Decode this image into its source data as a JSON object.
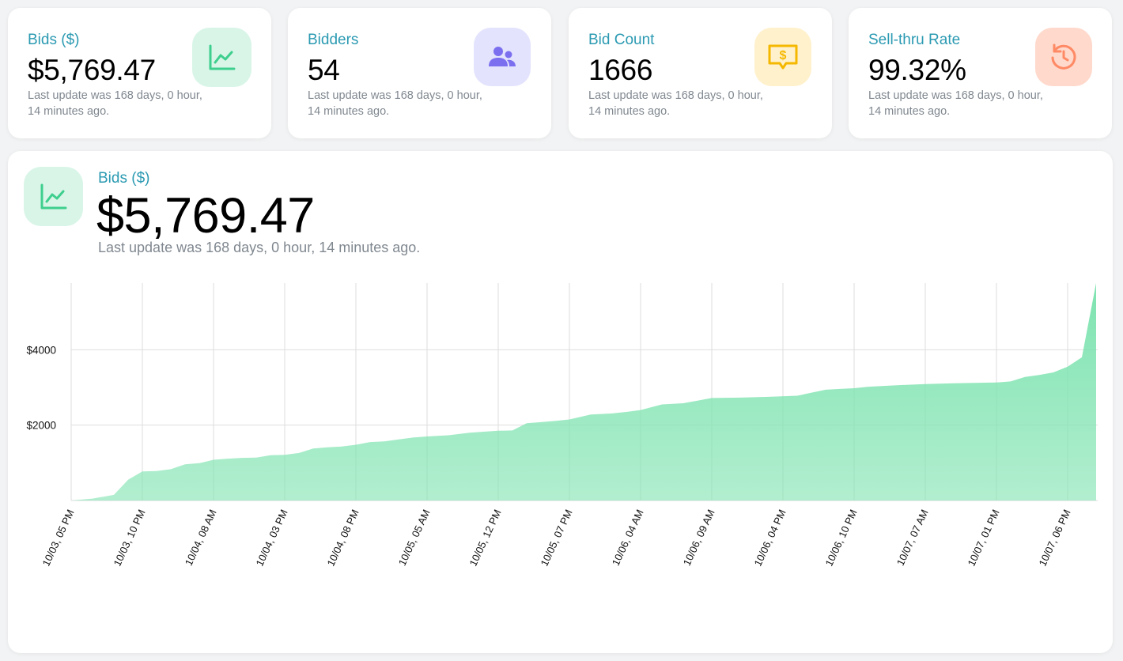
{
  "colors": {
    "accent_title": "#2b9ab2",
    "area_fill": "#7ee3b0",
    "bids_icon_bg": "#d9f5e8",
    "bids_icon": "#3ecf8e",
    "bidders_icon_bg": "#e3e3fd",
    "bidders_icon": "#7b6ff0",
    "bidcount_icon_bg": "#fff1cc",
    "bidcount_icon": "#f5b800",
    "sellthru_icon_bg": "#ffd9cc",
    "sellthru_icon": "#ff8a65"
  },
  "stats": [
    {
      "title": "Bids ($)",
      "value": "$5,769.47",
      "note": "Last update was 168 days, 0 hour, 14 minutes ago.",
      "icon": "chart-line-icon"
    },
    {
      "title": "Bidders",
      "value": "54",
      "note": "Last update was 168 days, 0 hour, 14 minutes ago.",
      "icon": "users-icon"
    },
    {
      "title": "Bid Count",
      "value": "1666",
      "note": "Last update was 168 days, 0 hour, 14 minutes ago.",
      "icon": "dollar-message-icon"
    },
    {
      "title": "Sell-thru Rate",
      "value": "99.32%",
      "note": "Last update was 168 days, 0 hour, 14 minutes ago.",
      "icon": "history-icon"
    }
  ],
  "main": {
    "title": "Bids ($)",
    "value": "$5,769.47",
    "note": "Last update was 168 days, 0 hour, 14 minutes ago.",
    "icon": "chart-line-icon"
  },
  "chart_data": {
    "type": "area",
    "title": "",
    "xlabel": "",
    "ylabel": "",
    "ylim": [
      0,
      5770
    ],
    "y_ticks": [
      {
        "value": 2000,
        "label": "$2000"
      },
      {
        "value": 4000,
        "label": "$4000"
      }
    ],
    "x_ticks": [
      "10/03, 05 PM",
      "10/03, 10 PM",
      "10/04, 08 AM",
      "10/04, 03 PM",
      "10/04, 08 PM",
      "10/05, 05 AM",
      "10/05, 12 PM",
      "10/05, 07 PM",
      "10/06, 04 AM",
      "10/06, 09 AM",
      "10/06, 04 PM",
      "10/06, 10 PM",
      "10/07, 07 AM",
      "10/07, 01 PM",
      "10/07, 06 PM"
    ],
    "grid": true,
    "series": [
      {
        "x": [
          0,
          0.3,
          0.6,
          0.8,
          1.0,
          1.2,
          1.4,
          1.6,
          1.8,
          2.0,
          2.2,
          2.4,
          2.6,
          2.8,
          3.0,
          3.2,
          3.4,
          3.6,
          3.8,
          4.0,
          4.2,
          4.4,
          4.6,
          4.8,
          5.0,
          5.3,
          5.6,
          6.0,
          6.2,
          6.4,
          6.6,
          6.8,
          7.0,
          7.3,
          7.6,
          7.8,
          8.0,
          8.3,
          8.6,
          8.8,
          9.0,
          9.4,
          9.8,
          10.2,
          10.6,
          10.8,
          11.0,
          11.2,
          11.6,
          12.0,
          12.4,
          13.0,
          13.2,
          13.4,
          13.6,
          13.8,
          14.0,
          14.2,
          14.4
        ],
        "values": [
          0,
          50,
          150,
          550,
          770,
          780,
          830,
          960,
          990,
          1080,
          1110,
          1130,
          1140,
          1200,
          1210,
          1260,
          1380,
          1410,
          1430,
          1480,
          1550,
          1570,
          1620,
          1670,
          1700,
          1730,
          1800,
          1850,
          1860,
          2050,
          2080,
          2110,
          2150,
          2280,
          2310,
          2350,
          2400,
          2550,
          2580,
          2650,
          2720,
          2730,
          2750,
          2780,
          2940,
          2960,
          2980,
          3020,
          3060,
          3090,
          3110,
          3130,
          3160,
          3280,
          3330,
          3400,
          3550,
          3800,
          5770
        ]
      }
    ]
  }
}
